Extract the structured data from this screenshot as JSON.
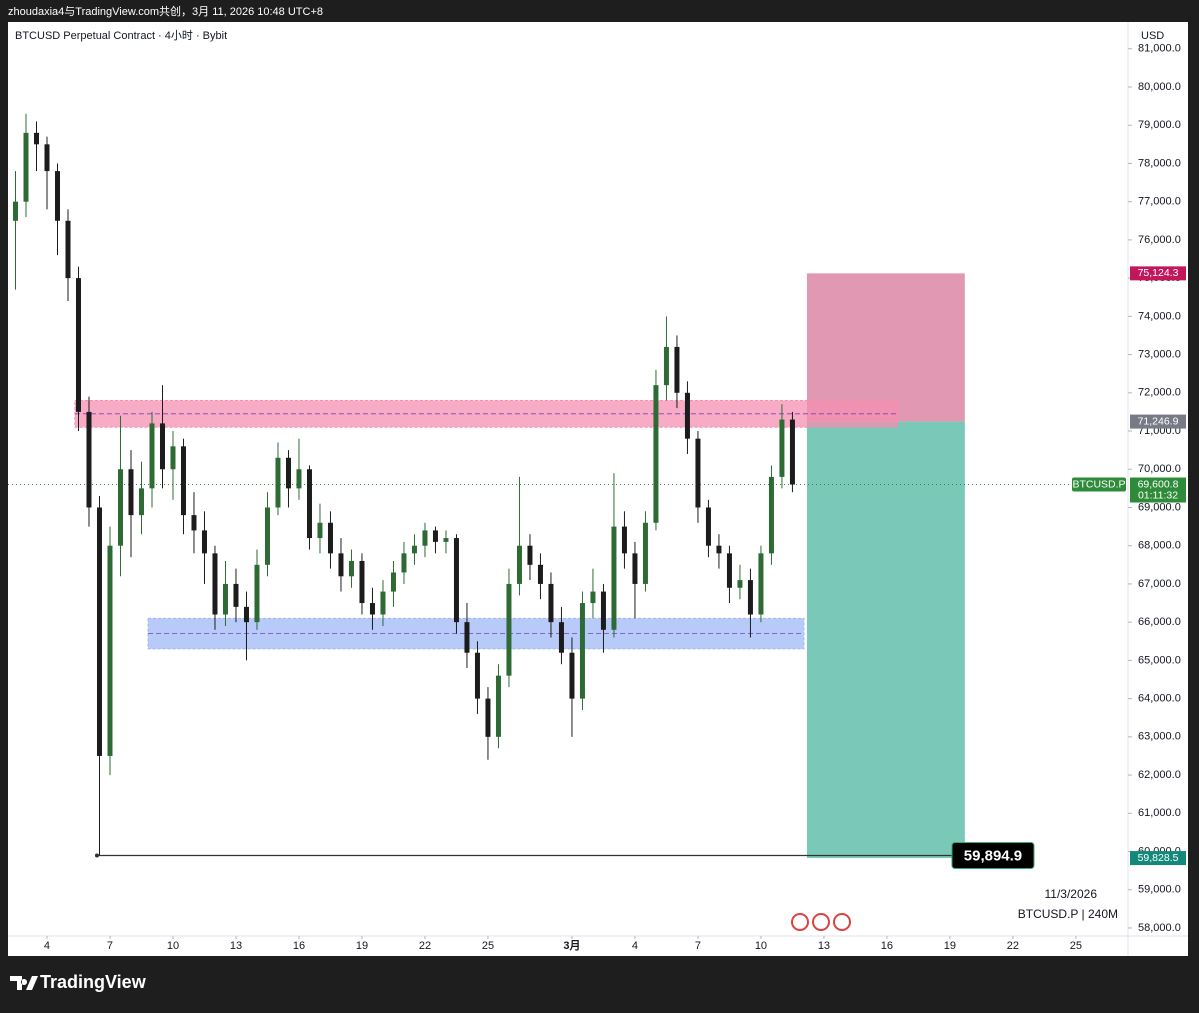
{
  "header": {
    "credit": "zhoudaxia4与TradingView.com共创，3月 11, 2026 10:48 UTC+8",
    "brand": "TradingView"
  },
  "chart_data": {
    "type": "candlestick",
    "title": "BTCUSD Perpetual Contract · 4小时 · Bybit",
    "currency": "USD",
    "date_label": "11/3/2026",
    "symbol_interval": "BTCUSD.P | 240M",
    "up_color": "#2e6b34",
    "down_color": "#1c1c1c",
    "xlim": [
      2.143,
      55.48
    ],
    "xticks": [
      4,
      7,
      10,
      13,
      16,
      19,
      22,
      25,
      {
        "value": 29,
        "label": "3月"
      },
      {
        "value": 32,
        "label": "4"
      },
      {
        "value": 35,
        "label": "7"
      },
      {
        "value": 38,
        "label": "10"
      },
      {
        "value": 41,
        "label": "13"
      },
      {
        "value": 44,
        "label": "16"
      },
      {
        "value": 47,
        "label": "19"
      },
      {
        "value": 50,
        "label": "22"
      },
      {
        "value": 53,
        "label": "25"
      }
    ],
    "ylim": [
      57790,
      81700
    ],
    "yticks": [
      {
        "value": 58000,
        "label": "58,000.0"
      },
      {
        "value": 59000,
        "label": "59,000.0"
      },
      {
        "value": 60000,
        "label": "60,000.0"
      },
      {
        "value": 61000,
        "label": "61,000.0"
      },
      {
        "value": 62000,
        "label": "62,000.0"
      },
      {
        "value": 63000,
        "label": "63,000.0"
      },
      {
        "value": 64000,
        "label": "64,000.0"
      },
      {
        "value": 65000,
        "label": "65,000.0"
      },
      {
        "value": 66000,
        "label": "66,000.0"
      },
      {
        "value": 67000,
        "label": "67,000.0"
      },
      {
        "value": 68000,
        "label": "68,000.0"
      },
      {
        "value": 69000,
        "label": "69,000.0"
      },
      {
        "value": 70000,
        "label": "70,000.0"
      },
      {
        "value": 71000,
        "label": "71,000.0"
      },
      {
        "value": 72000,
        "label": "72,000.0"
      },
      {
        "value": 73000,
        "label": "73,000.0"
      },
      {
        "value": 74000,
        "label": "74,000.0"
      },
      {
        "value": 75000,
        "label": "75,000.0"
      },
      {
        "value": 76000,
        "label": "76,000.0"
      },
      {
        "value": 77000,
        "label": "77,000.0"
      },
      {
        "value": 78000,
        "label": "78,000.0"
      },
      {
        "value": 79000,
        "label": "79,000.0"
      },
      {
        "value": 80000,
        "label": "80,000.0"
      },
      {
        "value": 81000,
        "label": "81,000.0"
      }
    ],
    "x": [
      2.5,
      3,
      3.5,
      4,
      4.5,
      5,
      5.5,
      6,
      6.5,
      7,
      7.5,
      8,
      8.5,
      9,
      9.5,
      10,
      10.5,
      11,
      11.5,
      12,
      12.5,
      13,
      13.5,
      14,
      14.5,
      15,
      15.5,
      16,
      16.5,
      17,
      17.5,
      18,
      18.5,
      19,
      19.5,
      20,
      20.5,
      21,
      21.5,
      22,
      22.5,
      23,
      23.5,
      24,
      24.5,
      25,
      25.5,
      26,
      26.5,
      27,
      27.5,
      28,
      28.5,
      29,
      29.5,
      30,
      30.5,
      31,
      31.5,
      32,
      32.5,
      33,
      33.5,
      34,
      34.5,
      35,
      35.5,
      36,
      36.5,
      37,
      37.5,
      38,
      38.5,
      39,
      39.5
    ],
    "candles": [
      [
        76500,
        77800,
        74700,
        77000
      ],
      [
        77000,
        79300,
        76600,
        78800
      ],
      [
        78800,
        79100,
        77800,
        78500
      ],
      [
        78500,
        78700,
        76800,
        77800
      ],
      [
        77800,
        78000,
        75600,
        76500
      ],
      [
        76500,
        76800,
        74400,
        75000
      ],
      [
        75000,
        75300,
        71000,
        71500
      ],
      [
        71500,
        71900,
        68500,
        69000
      ],
      [
        69000,
        69300,
        59894.9,
        62500
      ],
      [
        62500,
        68500,
        62000,
        68000
      ],
      [
        68000,
        71400,
        67200,
        70000
      ],
      [
        70000,
        70500,
        67700,
        68800
      ],
      [
        68800,
        70200,
        68300,
        69500
      ],
      [
        69500,
        71500,
        69000,
        71200
      ],
      [
        71200,
        72200,
        69500,
        70000
      ],
      [
        70000,
        71000,
        69200,
        70600
      ],
      [
        70600,
        70800,
        68300,
        68800
      ],
      [
        68800,
        69400,
        67800,
        68400
      ],
      [
        68400,
        68900,
        67000,
        67800
      ],
      [
        67800,
        68000,
        65800,
        66200
      ],
      [
        66200,
        67600,
        65900,
        67000
      ],
      [
        67000,
        67400,
        66000,
        66400
      ],
      [
        66400,
        66800,
        65000,
        66000
      ],
      [
        66000,
        67900,
        65800,
        67500
      ],
      [
        67500,
        69400,
        67200,
        69000
      ],
      [
        69000,
        70700,
        68800,
        70300
      ],
      [
        70300,
        70500,
        69000,
        69500
      ],
      [
        69500,
        70800,
        69200,
        70000
      ],
      [
        70000,
        70100,
        67900,
        68200
      ],
      [
        68200,
        69100,
        67800,
        68600
      ],
      [
        68600,
        68900,
        67400,
        67800
      ],
      [
        67800,
        68200,
        66800,
        67200
      ],
      [
        67200,
        67900,
        66900,
        67600
      ],
      [
        67600,
        67800,
        66200,
        66500
      ],
      [
        66500,
        66900,
        65800,
        66200
      ],
      [
        66200,
        67100,
        65900,
        66800
      ],
      [
        66800,
        67600,
        66400,
        67300
      ],
      [
        67300,
        68100,
        67000,
        67800
      ],
      [
        67800,
        68300,
        67500,
        68000
      ],
      [
        68000,
        68600,
        67700,
        68400
      ],
      [
        68400,
        68500,
        67800,
        68100
      ],
      [
        68100,
        68400,
        67800,
        68200
      ],
      [
        68200,
        68300,
        65700,
        66000
      ],
      [
        66000,
        66500,
        64800,
        65200
      ],
      [
        65200,
        65500,
        63600,
        64000
      ],
      [
        64000,
        64300,
        62400,
        63000
      ],
      [
        63000,
        64900,
        62700,
        64600
      ],
      [
        64600,
        67400,
        64300,
        67000
      ],
      [
        67000,
        69800,
        66700,
        68000
      ],
      [
        68000,
        68300,
        67100,
        67500
      ],
      [
        67500,
        67800,
        66600,
        67000
      ],
      [
        67000,
        67300,
        65600,
        66000
      ],
      [
        66000,
        66400,
        64900,
        65200
      ],
      [
        65200,
        65600,
        63000,
        64000
      ],
      [
        64000,
        66800,
        63700,
        66500
      ],
      [
        66500,
        67400,
        66100,
        66800
      ],
      [
        66800,
        67000,
        65200,
        65800
      ],
      [
        65800,
        69900,
        65600,
        68500
      ],
      [
        68500,
        68900,
        67400,
        67800
      ],
      [
        67800,
        68100,
        66100,
        67000
      ],
      [
        67000,
        68900,
        66800,
        68600
      ],
      [
        68600,
        72600,
        68400,
        72200
      ],
      [
        72200,
        74000,
        71800,
        73200
      ],
      [
        73200,
        73500,
        71600,
        72000
      ],
      [
        72000,
        72300,
        70400,
        70800
      ],
      [
        70800,
        71000,
        68600,
        69000
      ],
      [
        69000,
        69200,
        67700,
        68000
      ],
      [
        68000,
        68300,
        67400,
        67800
      ],
      [
        67800,
        68000,
        66500,
        66900
      ],
      [
        66900,
        67500,
        66600,
        67100
      ],
      [
        67100,
        67400,
        65600,
        66200
      ],
      [
        66200,
        68000,
        66000,
        67800
      ],
      [
        67800,
        70100,
        67500,
        69800
      ],
      [
        69800,
        71700,
        69500,
        71300
      ],
      [
        71300,
        71500,
        69400,
        69600
      ]
    ],
    "zones": [
      {
        "low": 71100,
        "high": 71800,
        "start": 5.33,
        "end": 44.52,
        "color": "#f48fb1"
      },
      {
        "low": 65300,
        "high": 66100,
        "start": 8.81,
        "end": 40.05,
        "color": "#9fb8f5"
      }
    ],
    "position": {
      "start": 40.19,
      "end": 47.71,
      "stop": {
        "value": 75124.3,
        "label": "75,124.3"
      },
      "entry": {
        "value": 71246.9,
        "label": "71,246.9"
      },
      "target": {
        "value": 59828.5,
        "label": "59,828.5"
      },
      "risk_color": "#e199b3",
      "reward_color": "#7ac8b8"
    },
    "low_marker": {
      "value": 59894.9,
      "label": "59,894.9",
      "start": 6.38,
      "end": 47.24
    },
    "last_price": {
      "value": 69600.8,
      "label": "69,600.8",
      "symbol": "BTCUSD.P",
      "countdown": "01:11:32",
      "color": "#2e8b3a"
    }
  }
}
